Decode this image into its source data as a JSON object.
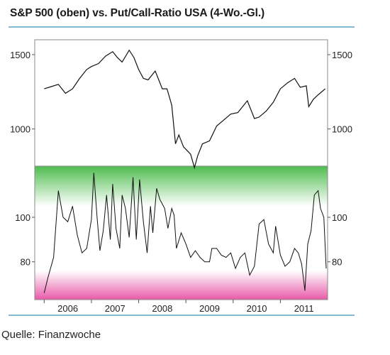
{
  "chart_data": {
    "title": "S&P 500 (oben) vs. Put/Call-Ratio USA (4-Wo.-Gl.)",
    "source": "Quelle: Finanzwoche",
    "x_ticks": [
      "2006",
      "2007",
      "2008",
      "2009",
      "2010",
      "2011"
    ],
    "top_panel": {
      "type": "line",
      "series_label": "S&P 500",
      "y_ticks": [
        1000,
        1500
      ],
      "ylim": [
        750,
        1600
      ],
      "x": [
        2006.0,
        2006.15,
        2006.3,
        2006.45,
        2006.6,
        2006.75,
        2006.9,
        2007.0,
        2007.15,
        2007.3,
        2007.45,
        2007.55,
        2007.65,
        2007.8,
        2007.9,
        2008.0,
        2008.1,
        2008.2,
        2008.35,
        2008.5,
        2008.6,
        2008.7,
        2008.78,
        2008.85,
        2008.95,
        2009.1,
        2009.18,
        2009.25,
        2009.35,
        2009.5,
        2009.65,
        2009.8,
        2009.95,
        2010.1,
        2010.3,
        2010.45,
        2010.55,
        2010.7,
        2010.85,
        2011.0,
        2011.15,
        2011.3,
        2011.42,
        2011.55,
        2011.6,
        2011.7,
        2011.8,
        2011.95
      ],
      "values": [
        1270,
        1285,
        1300,
        1240,
        1270,
        1340,
        1400,
        1420,
        1440,
        1490,
        1520,
        1480,
        1450,
        1530,
        1480,
        1400,
        1340,
        1330,
        1390,
        1270,
        1270,
        1160,
        900,
        960,
        880,
        830,
        740,
        820,
        900,
        920,
        1020,
        1060,
        1100,
        1110,
        1190,
        1070,
        1080,
        1120,
        1180,
        1270,
        1310,
        1340,
        1280,
        1290,
        1150,
        1200,
        1230,
        1270
      ]
    },
    "bottom_panel": {
      "type": "line",
      "series_label": "Put/Call-Ratio",
      "y_ticks": [
        80,
        100
      ],
      "ylim": [
        63,
        123
      ],
      "zones": [
        {
          "name": "upper-zone",
          "range": [
            105,
            123
          ],
          "color": "#55c055"
        },
        {
          "name": "lower-zone",
          "range": [
            63,
            76
          ],
          "color": "#e85aa8"
        }
      ],
      "x": [
        2006.0,
        2006.08,
        2006.2,
        2006.3,
        2006.4,
        2006.5,
        2006.6,
        2006.7,
        2006.8,
        2006.9,
        2007.0,
        2007.05,
        2007.12,
        2007.18,
        2007.25,
        2007.32,
        2007.4,
        2007.45,
        2007.52,
        2007.6,
        2007.65,
        2007.72,
        2007.8,
        2007.88,
        2007.95,
        2008.02,
        2008.1,
        2008.18,
        2008.25,
        2008.3,
        2008.38,
        2008.45,
        2008.55,
        2008.62,
        2008.7,
        2008.75,
        2008.8,
        2008.9,
        2009.0,
        2009.1,
        2009.2,
        2009.3,
        2009.4,
        2009.5,
        2009.55,
        2009.65,
        2009.75,
        2009.85,
        2009.95,
        2010.05,
        2010.15,
        2010.25,
        2010.35,
        2010.45,
        2010.55,
        2010.65,
        2010.75,
        2010.85,
        2010.9,
        2011.0,
        2011.1,
        2011.2,
        2011.3,
        2011.38,
        2011.45,
        2011.52,
        2011.58,
        2011.65,
        2011.72,
        2011.8,
        2011.85,
        2011.92,
        2011.97
      ],
      "values": [
        66,
        73,
        82,
        112,
        100,
        98,
        105,
        92,
        84,
        86,
        99,
        120,
        100,
        85,
        94,
        110,
        90,
        115,
        95,
        86,
        110,
        104,
        91,
        118,
        90,
        117,
        98,
        84,
        105,
        93,
        113,
        108,
        104,
        95,
        104,
        101,
        86,
        93,
        88,
        82,
        85,
        82,
        80,
        80,
        86,
        86,
        83,
        82,
        84,
        77,
        82,
        84,
        74,
        78,
        97,
        99,
        88,
        84,
        96,
        83,
        78,
        80,
        86,
        84,
        79,
        67,
        88,
        94,
        110,
        112,
        104,
        100,
        77
      ]
    }
  }
}
